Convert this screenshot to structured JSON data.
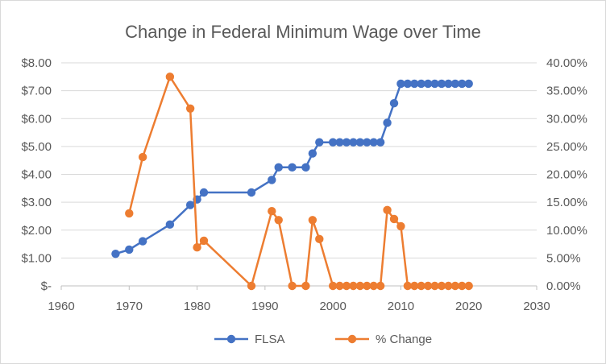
{
  "chart_data": {
    "type": "line",
    "title": "Change in Federal Minimum Wage over Time",
    "xlim": [
      1960,
      2030
    ],
    "x_ticks": [
      "1960",
      "1970",
      "1980",
      "1990",
      "2000",
      "2010",
      "2020",
      "2030"
    ],
    "ylim_left": [
      0,
      8
    ],
    "y_left_ticks": [
      "$-",
      "$1.00",
      "$2.00",
      "$3.00",
      "$4.00",
      "$5.00",
      "$6.00",
      "$7.00",
      "$8.00"
    ],
    "ylim_right": [
      0,
      0.4
    ],
    "y_right_ticks": [
      "0.00%",
      "5.00%",
      "10.00%",
      "15.00%",
      "20.00%",
      "25.00%",
      "30.00%",
      "35.00%",
      "40.00%"
    ],
    "grid": true,
    "legend_position": "bottom",
    "series": [
      {
        "name": "FLSA",
        "axis": "left",
        "color": "#4472c4",
        "x": [
          1968,
          1970,
          1972,
          1976,
          1979,
          1980,
          1981,
          1988,
          1991,
          1992,
          1994,
          1996,
          1997,
          1998,
          2000,
          2001,
          2002,
          2003,
          2004,
          2005,
          2006,
          2007,
          2008,
          2009,
          2010,
          2011,
          2012,
          2013,
          2014,
          2015,
          2016,
          2017,
          2018,
          2019,
          2020
        ],
        "y": [
          1.15,
          1.3,
          1.6,
          2.2,
          2.9,
          3.1,
          3.35,
          3.35,
          3.8,
          4.25,
          4.25,
          4.25,
          4.75,
          5.15,
          5.15,
          5.15,
          5.15,
          5.15,
          5.15,
          5.15,
          5.15,
          5.15,
          5.85,
          6.55,
          7.25,
          7.25,
          7.25,
          7.25,
          7.25,
          7.25,
          7.25,
          7.25,
          7.25,
          7.25,
          7.25
        ]
      },
      {
        "name": "% Change",
        "axis": "right",
        "color": "#ed7d31",
        "x": [
          1970,
          1972,
          1976,
          1979,
          1980,
          1981,
          1988,
          1991,
          1992,
          1994,
          1996,
          1997,
          1998,
          2000,
          2001,
          2002,
          2003,
          2004,
          2005,
          2006,
          2007,
          2008,
          2009,
          2010,
          2011,
          2012,
          2013,
          2014,
          2015,
          2016,
          2017,
          2018,
          2019,
          2020
        ],
        "y": [
          0.13,
          0.231,
          0.375,
          0.318,
          0.069,
          0.081,
          0.0,
          0.134,
          0.118,
          0.0,
          0.0,
          0.118,
          0.084,
          0.0,
          0.0,
          0.0,
          0.0,
          0.0,
          0.0,
          0.0,
          0.0,
          0.136,
          0.12,
          0.107,
          0.0,
          0.0,
          0.0,
          0.0,
          0.0,
          0.0,
          0.0,
          0.0,
          0.0,
          0.0
        ]
      }
    ]
  }
}
